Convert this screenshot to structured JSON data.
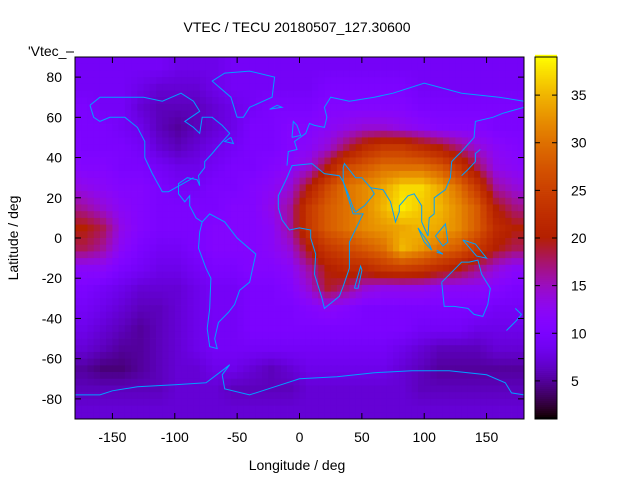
{
  "chart_data": {
    "type": "heatmap",
    "title": "VTEC / TECU 20180507_127.30600",
    "xlabel": "Longitude / deg",
    "ylabel": "Latitude / deg",
    "key_label": "'Vtec_",
    "xlim": [
      -180,
      180
    ],
    "ylim": [
      -90,
      90
    ],
    "zlim": [
      1,
      39
    ],
    "xticks": [
      -150,
      -100,
      -50,
      0,
      50,
      100,
      150
    ],
    "xtick_labels": [
      "-150",
      "-100",
      "-50",
      "0",
      "50",
      "100",
      "150"
    ],
    "yticks": [
      -80,
      -60,
      -40,
      -20,
      0,
      20,
      40,
      60,
      80
    ],
    "ytick_labels": [
      "-80",
      "-60",
      "-40",
      "-20",
      "0",
      "20",
      "40",
      "60",
      "80"
    ],
    "cbticks": [
      5,
      10,
      15,
      20,
      25,
      30,
      35
    ],
    "cbtick_labels": [
      "5",
      "10",
      "15",
      "20",
      "25",
      "30",
      "35"
    ],
    "colormap": "black-purple-red-orange-yellow",
    "coastline_color": "#00a0ff",
    "lon_centers": [
      -172.5,
      -157.5,
      -142.5,
      -127.5,
      -112.5,
      -97.5,
      -82.5,
      -67.5,
      -52.5,
      -37.5,
      -22.5,
      -7.5,
      7.5,
      22.5,
      37.5,
      52.5,
      67.5,
      82.5,
      97.5,
      112.5,
      127.5,
      142.5,
      157.5,
      172.5
    ],
    "lat_centers": [
      85,
      75,
      65,
      55,
      45,
      35,
      25,
      15,
      5,
      -5,
      -15,
      -25,
      -35,
      -45,
      -55,
      -65,
      -75,
      -85
    ],
    "values": [
      [
        9,
        9,
        9,
        9,
        9,
        8,
        8,
        8,
        9,
        9,
        9,
        9,
        9,
        9,
        9,
        9,
        9,
        9,
        9,
        9,
        9,
        9,
        9,
        9
      ],
      [
        9,
        9,
        9,
        8,
        7,
        7,
        7,
        8,
        9,
        9,
        9,
        9,
        9,
        10,
        10,
        10,
        10,
        10,
        9,
        9,
        9,
        9,
        9,
        9
      ],
      [
        10,
        9,
        9,
        7,
        6,
        6,
        6,
        7,
        8,
        9,
        10,
        10,
        10,
        11,
        11,
        11,
        11,
        11,
        10,
        10,
        10,
        10,
        10,
        10
      ],
      [
        10,
        10,
        9,
        8,
        6,
        5,
        6,
        7,
        8,
        10,
        10,
        11,
        11,
        12,
        13,
        14,
        14,
        13,
        12,
        11,
        11,
        11,
        10,
        10
      ],
      [
        10,
        10,
        10,
        9,
        7,
        6,
        7,
        8,
        9,
        10,
        10,
        11,
        12,
        14,
        18,
        22,
        24,
        24,
        22,
        20,
        17,
        14,
        12,
        11
      ],
      [
        11,
        11,
        10,
        10,
        9,
        8,
        8,
        9,
        10,
        10,
        11,
        12,
        14,
        20,
        26,
        28,
        30,
        30,
        30,
        28,
        24,
        18,
        13,
        12
      ],
      [
        13,
        12,
        11,
        11,
        10,
        9,
        9,
        10,
        10,
        11,
        12,
        14,
        20,
        26,
        30,
        32,
        34,
        37,
        37,
        34,
        30,
        24,
        16,
        14
      ],
      [
        16,
        14,
        12,
        11,
        10,
        10,
        10,
        10,
        11,
        11,
        13,
        16,
        24,
        28,
        30,
        32,
        35,
        38,
        36,
        35,
        32,
        28,
        20,
        17
      ],
      [
        20,
        18,
        13,
        11,
        10,
        10,
        10,
        11,
        11,
        11,
        12,
        16,
        24,
        28,
        30,
        32,
        33,
        34,
        35,
        34,
        32,
        28,
        22,
        20
      ],
      [
        18,
        16,
        12,
        10,
        9,
        9,
        10,
        11,
        11,
        11,
        12,
        14,
        20,
        24,
        26,
        28,
        30,
        35,
        33,
        30,
        28,
        24,
        20,
        18
      ],
      [
        12,
        12,
        10,
        9,
        8,
        8,
        9,
        10,
        10,
        11,
        11,
        12,
        16,
        20,
        22,
        22,
        24,
        25,
        24,
        22,
        20,
        17,
        14,
        12
      ],
      [
        10,
        9,
        8,
        7,
        7,
        7,
        8,
        9,
        9,
        10,
        10,
        11,
        14,
        19,
        17,
        14,
        13,
        13,
        13,
        12,
        12,
        12,
        11,
        10
      ],
      [
        9,
        8,
        7,
        6,
        6,
        7,
        8,
        9,
        9,
        10,
        10,
        10,
        11,
        12,
        11,
        10,
        10,
        10,
        10,
        10,
        10,
        10,
        9,
        9
      ],
      [
        8,
        7,
        6,
        5,
        6,
        7,
        8,
        9,
        9,
        10,
        10,
        10,
        10,
        10,
        10,
        10,
        10,
        10,
        9,
        9,
        9,
        8,
        8,
        8
      ],
      [
        7,
        6,
        5,
        5,
        6,
        7,
        8,
        9,
        9,
        9,
        9,
        9,
        9,
        9,
        9,
        9,
        9,
        8,
        7,
        6,
        6,
        6,
        7,
        7
      ],
      [
        5,
        4,
        4,
        5,
        6,
        7,
        7,
        8,
        8,
        7,
        6,
        7,
        8,
        8,
        8,
        8,
        8,
        7,
        6,
        5,
        5,
        5,
        5,
        5
      ],
      [
        6,
        6,
        6,
        6,
        6,
        7,
        7,
        7,
        6,
        6,
        6,
        6,
        7,
        7,
        7,
        7,
        7,
        7,
        6,
        6,
        6,
        6,
        6,
        6
      ],
      [
        7,
        7,
        7,
        7,
        7,
        7,
        7,
        7,
        7,
        7,
        7,
        7,
        7,
        7,
        7,
        7,
        7,
        7,
        7,
        7,
        7,
        7,
        7,
        7
      ]
    ]
  }
}
